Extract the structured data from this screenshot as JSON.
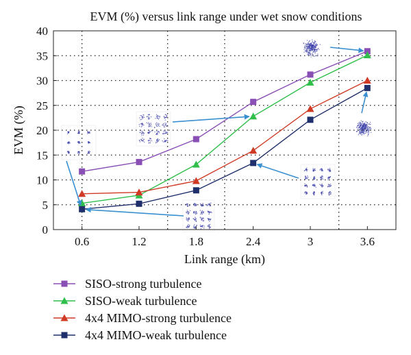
{
  "chart_data": {
    "type": "line",
    "title": "EVM (%) versus link range under wet snow conditions",
    "xlabel": "Link range (km)",
    "ylabel": "EVM (%)",
    "x": [
      0.6,
      1.2,
      1.8,
      2.4,
      3,
      3.6
    ],
    "x_tick_labels": [
      "0.6",
      "1.2",
      "1.8",
      "2.4",
      "3",
      "3.6"
    ],
    "xlim": [
      0.3,
      3.9
    ],
    "ylim": [
      0,
      40
    ],
    "y_ticks": [
      0,
      5,
      10,
      15,
      20,
      25,
      30,
      35,
      40
    ],
    "grid": true,
    "legend_position": "bottom",
    "series": [
      {
        "name": "SISO-strong turbulence",
        "color": "#8a4fb5",
        "marker": "square",
        "values": [
          11.7,
          13.6,
          18.2,
          25.7,
          31.2,
          35.9
        ]
      },
      {
        "name": "SISO-weak turbulence",
        "color": "#2fbf4a",
        "marker": "triangle",
        "values": [
          5.3,
          6.9,
          13.1,
          22.8,
          29.6,
          35.1
        ]
      },
      {
        "name": "4x4 MIMO-strong turbulence",
        "color": "#d03a25",
        "marker": "triangle",
        "values": [
          7.2,
          7.5,
          9.8,
          15.9,
          24.3,
          30.0
        ]
      },
      {
        "name": "4x4 MIMO-weak turbulence",
        "color": "#1f2f6b",
        "marker": "square",
        "values": [
          4.1,
          5.2,
          7.9,
          13.4,
          22.1,
          28.5
        ]
      }
    ],
    "annotations": [
      {
        "type": "constellation-inset",
        "points_to": {
          "x": 0.6,
          "y": 4.1
        }
      },
      {
        "type": "constellation-inset",
        "points_to": {
          "x": 0.6,
          "y": 4.1
        }
      },
      {
        "type": "constellation-inset",
        "points_to": {
          "x": 2.4,
          "y": 22.8
        }
      },
      {
        "type": "constellation-inset",
        "points_to": {
          "x": 2.4,
          "y": 13.4
        }
      },
      {
        "type": "constellation-inset",
        "points_to": {
          "x": 3.6,
          "y": 35.9
        }
      },
      {
        "type": "constellation-inset",
        "points_to": {
          "x": 3.6,
          "y": 28.5
        }
      }
    ],
    "arrow_color": "#3a8fd0",
    "inset_color": "#3b3fa8"
  }
}
